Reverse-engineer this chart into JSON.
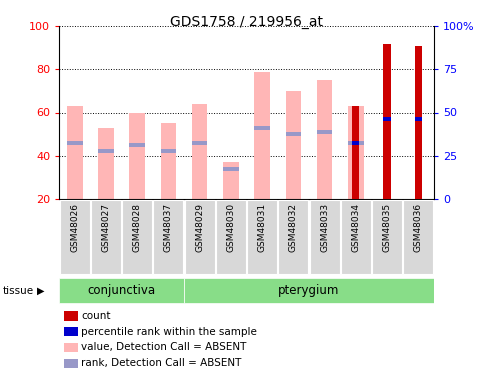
{
  "title": "GDS1758 / 219956_at",
  "samples": [
    "GSM48026",
    "GSM48027",
    "GSM48028",
    "GSM48037",
    "GSM48029",
    "GSM48030",
    "GSM48031",
    "GSM48032",
    "GSM48033",
    "GSM48034",
    "GSM48035",
    "GSM48036"
  ],
  "pink_bar_heights": [
    63,
    53,
    60,
    55,
    64,
    37,
    79,
    70,
    75,
    63,
    0,
    0
  ],
  "blue_dot_positions": [
    46,
    42,
    45,
    42,
    46,
    34,
    53,
    50,
    51,
    46,
    57,
    57
  ],
  "red_bar_heights": [
    0,
    0,
    0,
    0,
    0,
    0,
    0,
    0,
    0,
    63,
    92,
    91
  ],
  "blue_dot2_positions": [
    0,
    0,
    0,
    0,
    0,
    0,
    0,
    0,
    0,
    46,
    57,
    57
  ],
  "conjunctiva_samples": 4,
  "pterygium_samples": 8,
  "ylim_left": [
    20,
    100
  ],
  "yticks_left": [
    20,
    40,
    60,
    80,
    100
  ],
  "yticks_right": [
    0,
    25,
    50,
    75,
    100
  ],
  "yticklabels_right": [
    "0",
    "25",
    "50",
    "75",
    "100%"
  ],
  "color_pink": "#FFB6B6",
  "color_blue_dot": "#9898C8",
  "color_red": "#CC0000",
  "color_blue2": "#0000CC",
  "color_green_band": "#88DD88",
  "color_gray_label": "#D8D8D8",
  "legend_items": [
    {
      "label": "count",
      "color": "#CC0000"
    },
    {
      "label": "percentile rank within the sample",
      "color": "#0000CC"
    },
    {
      "label": "value, Detection Call = ABSENT",
      "color": "#FFB6B6"
    },
    {
      "label": "rank, Detection Call = ABSENT",
      "color": "#9898C8"
    }
  ],
  "tissue_label": "tissue",
  "conjunctiva_label": "conjunctiva",
  "pterygium_label": "pterygium"
}
